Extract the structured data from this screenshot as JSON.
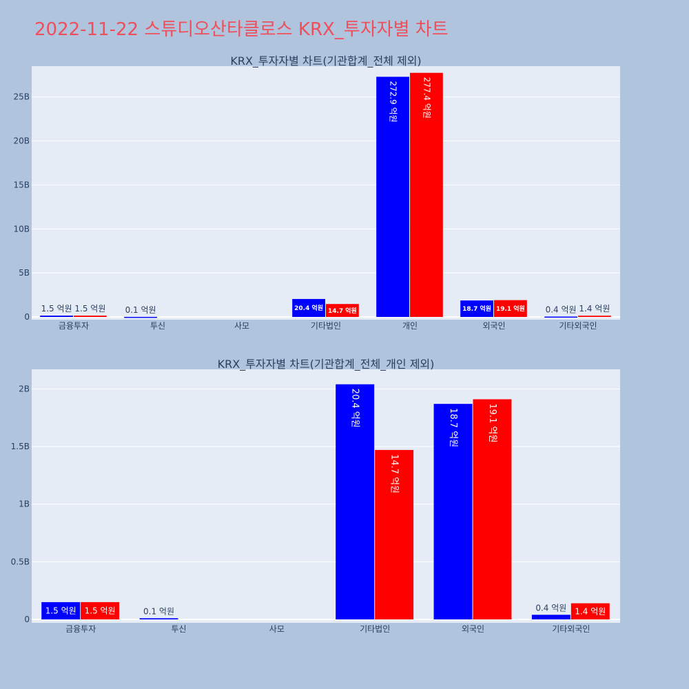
{
  "title": "2022-11-22 스튜디오산타클로스 KRX_투자자별 차트",
  "colors": {
    "buy": "#0000ff",
    "sell": "#ff0000",
    "plot_bg": "#e5ecf6",
    "page_bg": "#b0c4de",
    "title": "#ef4f5a"
  },
  "chart_data": [
    {
      "type": "bar",
      "title": "KRX_투자자별 차트(기관합계_전체 제외)",
      "categories": [
        "금융투자",
        "투신",
        "사모",
        "기타법인",
        "개인",
        "외국인",
        "기타외국인"
      ],
      "series": [
        {
          "values": [
            150000000,
            10000000,
            0,
            2040000000,
            27290000000,
            1870000000,
            40000000
          ],
          "labels": [
            "1.5 억원",
            "0.1 억원",
            "",
            "20.4 억원",
            "272.9 억원",
            "18.7 억원",
            "0.4 억원"
          ]
        },
        {
          "values": [
            150000000,
            0,
            0,
            1470000000,
            27740000000,
            1910000000,
            140000000
          ],
          "labels": [
            "1.5 억원",
            "",
            "",
            "14.7 억원",
            "277.4 억원",
            "19.1 억원",
            "1.4 억원"
          ]
        }
      ],
      "ylim": [
        0,
        28500000000
      ],
      "yticks": [
        0,
        5000000000,
        10000000000,
        15000000000,
        20000000000,
        25000000000
      ],
      "ytick_labels": [
        "0",
        "5B",
        "10B",
        "15B",
        "20B",
        "25B"
      ],
      "grid": true,
      "legend": "none"
    },
    {
      "type": "bar",
      "title": "KRX_투자자별 차트(기관합계_전체_개인 제외)",
      "categories": [
        "금융투자",
        "투신",
        "사모",
        "기타법인",
        "외국인",
        "기타외국인"
      ],
      "series": [
        {
          "values": [
            150000000,
            10000000,
            0,
            2040000000,
            1870000000,
            40000000
          ],
          "labels": [
            "1.5 억원",
            "0.1 억원",
            "",
            "20.4 억원",
            "18.7 억원",
            "0.4 억원"
          ]
        },
        {
          "values": [
            150000000,
            0,
            0,
            1470000000,
            1910000000,
            140000000
          ],
          "labels": [
            "1.5 억원",
            "",
            "",
            "14.7 억원",
            "19.1 억원",
            "1.4 억원"
          ]
        }
      ],
      "ylim": [
        0,
        2170000000
      ],
      "yticks": [
        0,
        500000000,
        1000000000,
        1500000000,
        2000000000
      ],
      "ytick_labels": [
        "0",
        "0.5B",
        "1B",
        "1.5B",
        "2B"
      ],
      "grid": true,
      "legend": "none"
    }
  ]
}
